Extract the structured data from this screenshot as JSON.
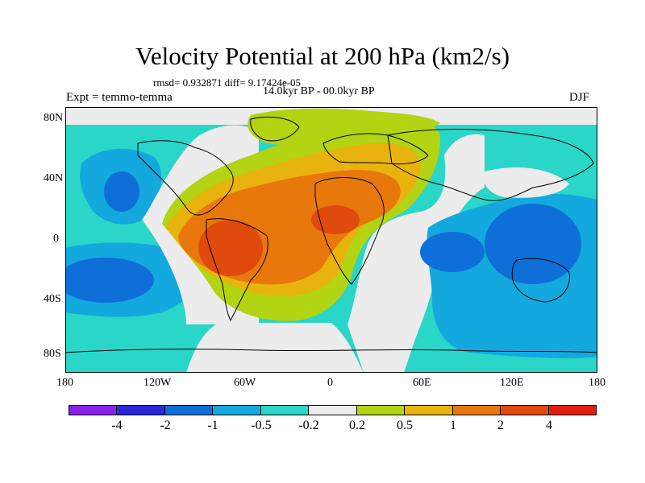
{
  "title": "Velocity Potential at 200 hPa (km2/s)",
  "stats_text": "rmsd= 0.932871  diff= 9.17424e-05",
  "period_text": "14.0kyr BP - 00.0kyr BP",
  "expt_text": "Expt = temmo-temma",
  "season": "DJF",
  "y_ticks": [
    "80N",
    "40N",
    "0",
    "40S",
    "80S"
  ],
  "x_ticks": [
    "180",
    "120W",
    "60W",
    "0",
    "60E",
    "120E",
    "180"
  ],
  "legend": {
    "labels": [
      "-4",
      "-2",
      "-1",
      "-0.5",
      "-0.2",
      "0.2",
      "0.5",
      "1",
      "2",
      "4"
    ],
    "colors": [
      "#8a21e8",
      "#2828d8",
      "#0e6fd8",
      "#13a9de",
      "#2ad6c8",
      "#ececec",
      "#b2d412",
      "#e8b30d",
      "#e8780c",
      "#e04a0c",
      "#e01e0e"
    ]
  }
}
